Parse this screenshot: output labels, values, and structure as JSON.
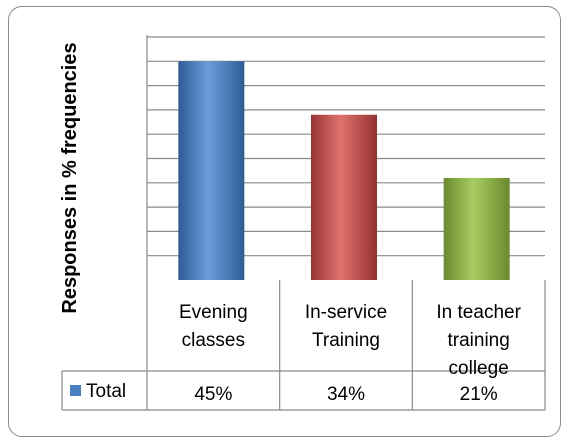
{
  "chart_data": {
    "type": "bar",
    "ylabel": "Responses in % frequencies",
    "categories": [
      "Evening classes",
      "In-service Training",
      "In teacher training college"
    ],
    "category_lines": [
      [
        "Evening",
        "classes"
      ],
      [
        "In-service",
        "Training"
      ],
      [
        "In teacher",
        "training",
        "college"
      ]
    ],
    "series": [
      {
        "name": "Total",
        "values": [
          45,
          34,
          21
        ],
        "value_labels": [
          "45%",
          "34%",
          "21%"
        ]
      }
    ],
    "ylim": [
      0,
      50
    ],
    "grid": true,
    "legend": "data-table",
    "colors": [
      "#4a7fc1",
      "#c0504d",
      "#86ad3f"
    ],
    "legend_key_color": "#4a7fc1"
  }
}
